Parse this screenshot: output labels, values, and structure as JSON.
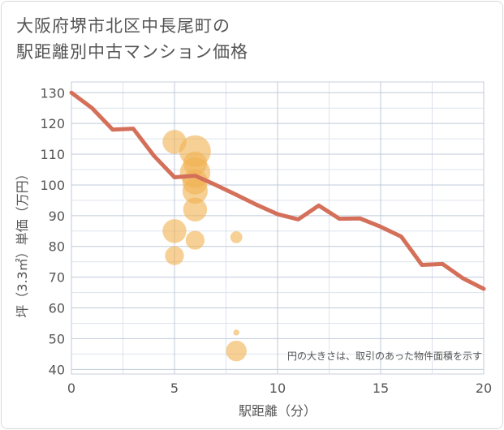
{
  "title_line1": "大阪府堺市北区中長尾町の",
  "title_line2": "駅距離別中古マンション価格",
  "chart_data": {
    "type": "scatter",
    "title": "大阪府堺市北区中長尾町の駅距離別中古マンション価格",
    "xlabel": "駅距離（分）",
    "ylabel": "坪（3.3㎡）単価（万円）",
    "xlim": [
      0,
      20
    ],
    "ylim": [
      38.5,
      133.5
    ],
    "x_ticks": [
      0,
      5,
      10,
      15,
      20
    ],
    "y_ticks": [
      40,
      50,
      60,
      70,
      80,
      90,
      100,
      110,
      120,
      130
    ],
    "grid": true,
    "note": "円の大きさは、取引のあった物件面積を示す",
    "bubble_color": "#f0b354",
    "line_color": "#d4705a",
    "bubbles": [
      {
        "x": 5,
        "y": 114,
        "size": 8
      },
      {
        "x": 5,
        "y": 85,
        "size": 8
      },
      {
        "x": 5,
        "y": 77,
        "size": 5
      },
      {
        "x": 6,
        "y": 111,
        "size": 14
      },
      {
        "x": 6,
        "y": 107,
        "size": 8
      },
      {
        "x": 6,
        "y": 104,
        "size": 13
      },
      {
        "x": 6,
        "y": 101,
        "size": 9
      },
      {
        "x": 6,
        "y": 98,
        "size": 9
      },
      {
        "x": 6,
        "y": 92,
        "size": 8
      },
      {
        "x": 6,
        "y": 82,
        "size": 5
      },
      {
        "x": 8,
        "y": 83,
        "size": 2
      },
      {
        "x": 8,
        "y": 52,
        "size": 0.5
      },
      {
        "x": 8,
        "y": 46,
        "size": 6
      }
    ],
    "trend_line": {
      "x": [
        0,
        1,
        2,
        3,
        4,
        5,
        6,
        7,
        8,
        9,
        10,
        11,
        12,
        13,
        14,
        15,
        16,
        17,
        18,
        19,
        20
      ],
      "y": [
        130,
        125,
        118,
        118.3,
        109.5,
        102.5,
        103,
        100,
        96.8,
        93.5,
        90.5,
        88.8,
        93.3,
        89,
        89.1,
        86.4,
        83.2,
        74,
        74.3,
        69.6,
        66.2
      ]
    }
  }
}
